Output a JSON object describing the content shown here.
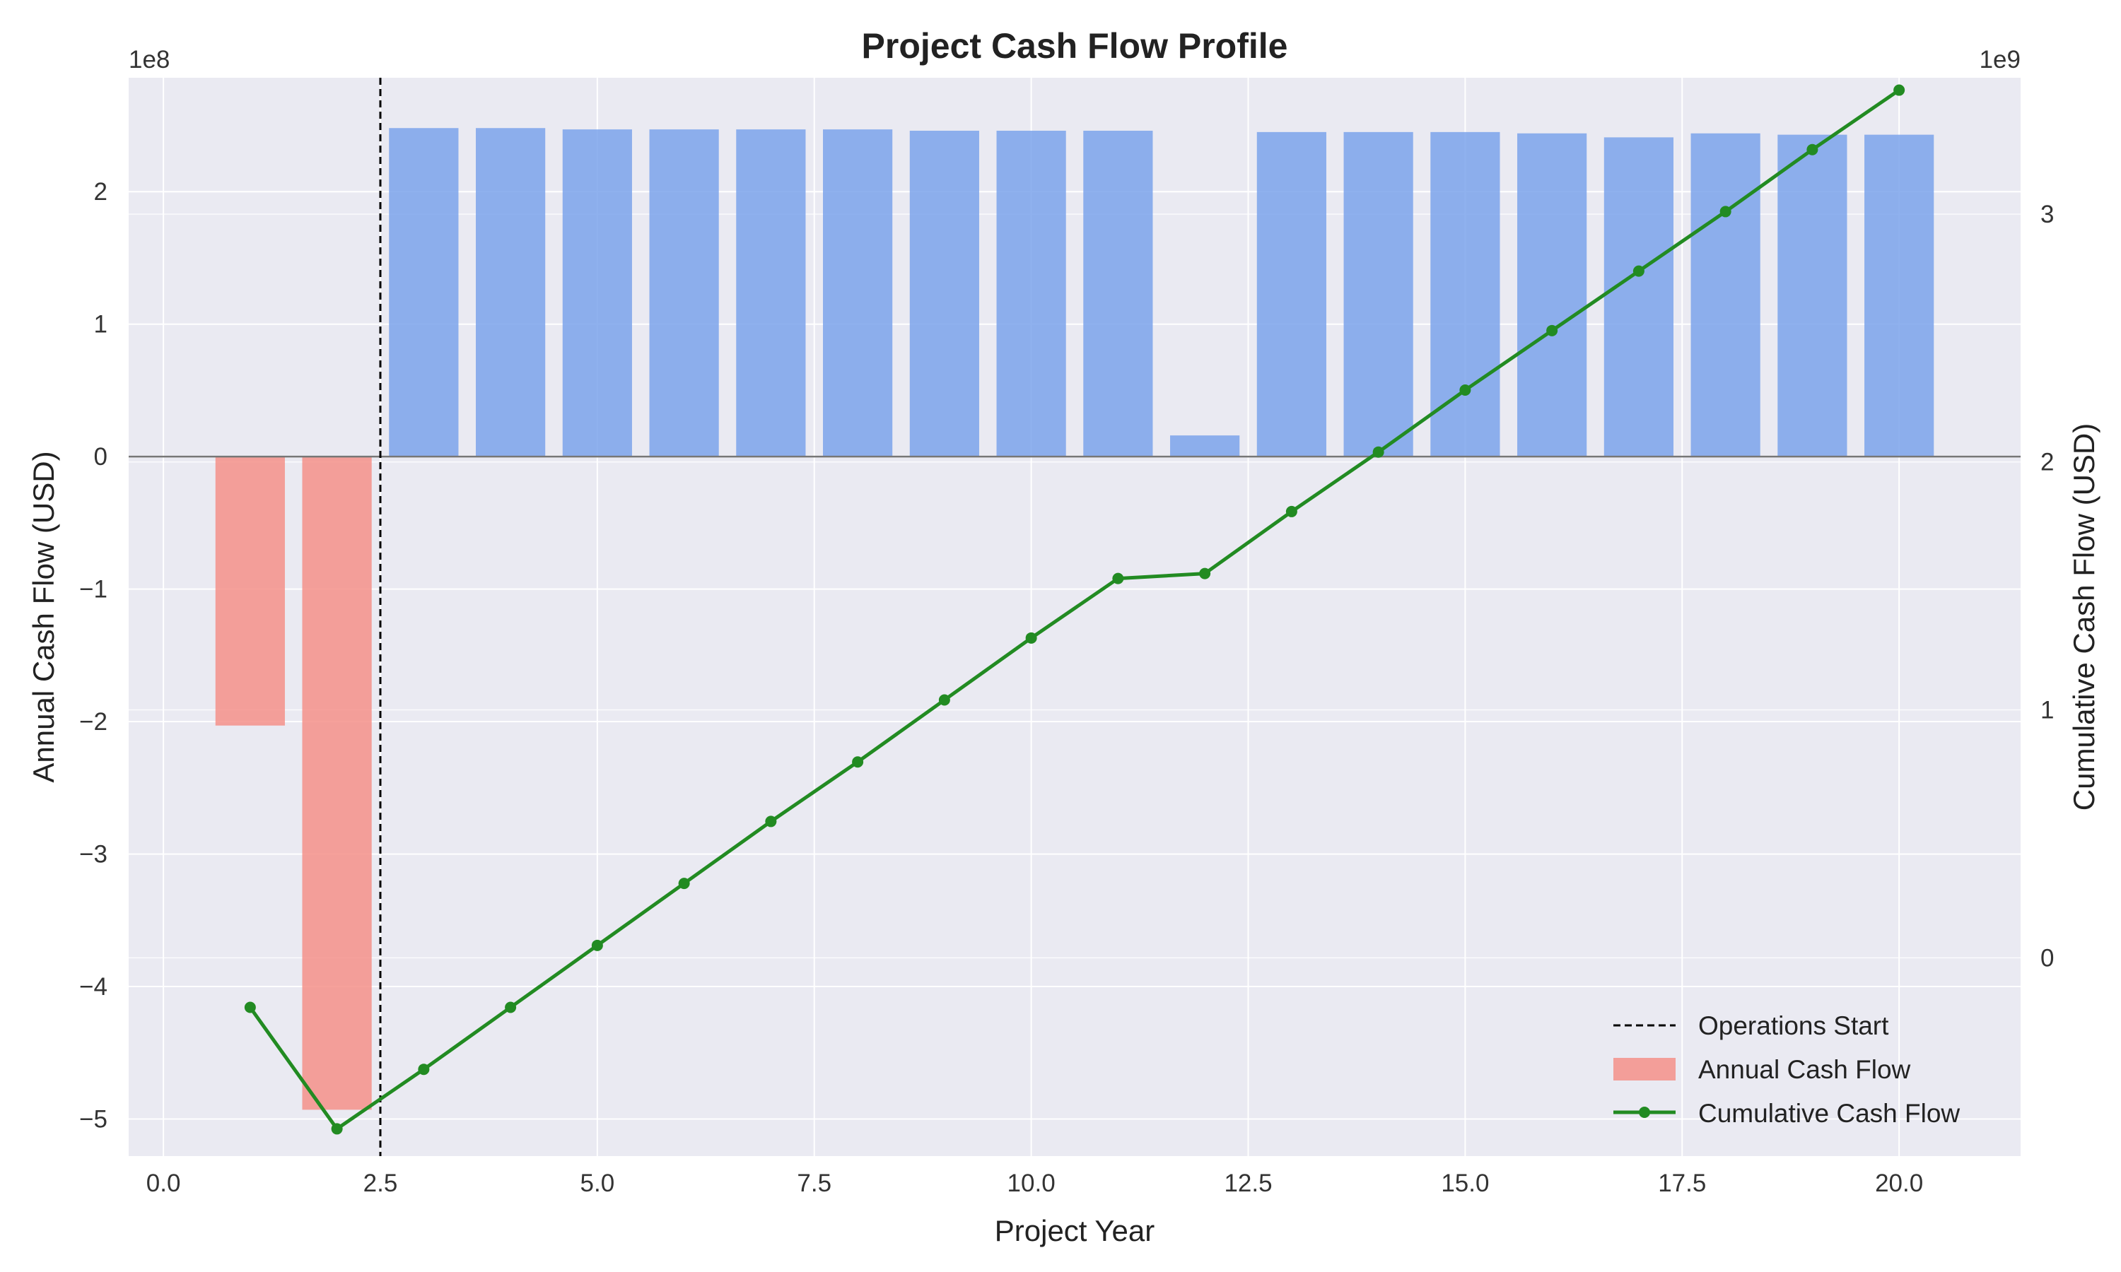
{
  "chart_data": {
    "type": "bar",
    "title": "Project Cash Flow Profile",
    "xlabel": "Project Year",
    "ylabel": "Annual Cash Flow (USD)",
    "y2label": "Cumulative Cash Flow (USD)",
    "y_offset_label": "1e8",
    "y2_offset_label": "1e9",
    "xlim": [
      -0.4,
      21.4
    ],
    "ylim": [
      -5.28,
      2.86
    ],
    "y2lim": [
      -0.8,
      3.55
    ],
    "x_ticks": [
      0,
      2.5,
      5,
      7.5,
      10,
      12.5,
      15,
      17.5,
      20
    ],
    "x_tick_labels": [
      "0.0",
      "2.5",
      "5.0",
      "7.5",
      "10.0",
      "12.5",
      "15.0",
      "17.5",
      "20.0"
    ],
    "y_ticks": [
      -5,
      -4,
      -3,
      -2,
      -1,
      0,
      1,
      2
    ],
    "y_tick_labels": [
      "−5",
      "−4",
      "−3",
      "−2",
      "−1",
      "0",
      "1",
      "2"
    ],
    "y2_ticks": [
      0,
      1,
      2,
      3
    ],
    "y2_tick_labels": [
      "0",
      "1",
      "2",
      "3"
    ],
    "grid": true,
    "legend_position": "bottom-right",
    "operations_start_x": 2.5,
    "colors": {
      "positive_bar": "#7ba3eb",
      "negative_bar": "#f59189",
      "cumulative_line": "#228b22",
      "operations_line": "#000000",
      "plot_background": "#eaeaf2",
      "zero_line": "#777777"
    },
    "series": [
      {
        "name": "Annual Cash Flow",
        "kind": "bar",
        "unit_scale": "1e8",
        "x": [
          1,
          2,
          3,
          4,
          5,
          6,
          7,
          8,
          9,
          10,
          11,
          12,
          13,
          14,
          15,
          16,
          17,
          18,
          19,
          20
        ],
        "values": [
          -2.03,
          -4.93,
          2.48,
          2.48,
          2.47,
          2.47,
          2.47,
          2.47,
          2.46,
          2.46,
          2.46,
          0.16,
          2.45,
          2.45,
          2.45,
          2.44,
          2.41,
          2.44,
          2.43,
          2.43
        ]
      },
      {
        "name": "Cumulative Cash Flow",
        "kind": "line",
        "unit_scale": "1e9",
        "x": [
          1,
          2,
          3,
          4,
          5,
          6,
          7,
          8,
          9,
          10,
          11,
          12,
          13,
          14,
          15,
          16,
          17,
          18,
          19,
          20
        ],
        "values": [
          -0.2,
          -0.69,
          -0.45,
          -0.2,
          0.05,
          0.3,
          0.55,
          0.79,
          1.04,
          1.29,
          1.53,
          1.55,
          1.8,
          2.04,
          2.29,
          2.53,
          2.77,
          3.01,
          3.26,
          3.5
        ]
      }
    ],
    "legend": [
      "Operations Start",
      "Annual Cash Flow",
      "Cumulative Cash Flow"
    ]
  }
}
